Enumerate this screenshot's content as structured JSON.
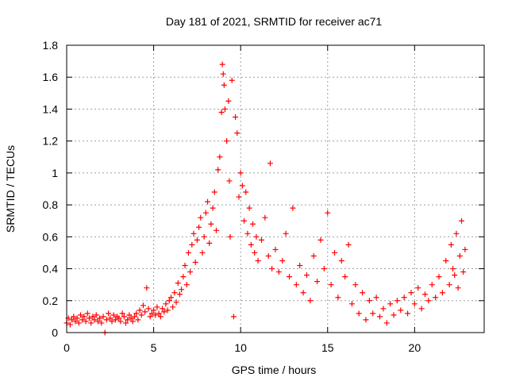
{
  "chart_data": {
    "type": "scatter",
    "title": "Day 181 of 2021, SRMTID for receiver ac71",
    "xlabel": "GPS time / hours",
    "ylabel": "SRMTID / TECUs",
    "xlim": [
      0,
      24
    ],
    "ylim": [
      0,
      1.8
    ],
    "x_ticks": [
      0,
      5,
      10,
      15,
      20
    ],
    "x_tick_labels": [
      "0",
      "5",
      "10",
      "15",
      "20"
    ],
    "y_ticks": [
      0,
      0.2,
      0.4,
      0.6,
      0.8,
      1.0,
      1.2,
      1.4,
      1.6,
      1.8
    ],
    "y_tick_labels": [
      "0",
      "0.2",
      "0.4",
      "0.6",
      "0.8",
      "1",
      "1.2",
      "1.4",
      "1.6",
      "1.8"
    ],
    "grid": true,
    "marker": "plus",
    "color": "#ff0000",
    "series": [
      {
        "name": "SRMTID ac71",
        "points": [
          [
            0.0,
            0.06
          ],
          [
            0.1,
            0.09
          ],
          [
            0.2,
            0.05
          ],
          [
            0.3,
            0.08
          ],
          [
            0.4,
            0.1
          ],
          [
            0.5,
            0.07
          ],
          [
            0.6,
            0.09
          ],
          [
            0.7,
            0.06
          ],
          [
            0.8,
            0.11
          ],
          [
            0.9,
            0.08
          ],
          [
            1.0,
            0.1
          ],
          [
            1.1,
            0.07
          ],
          [
            1.2,
            0.12
          ],
          [
            1.3,
            0.09
          ],
          [
            1.4,
            0.06
          ],
          [
            1.5,
            0.1
          ],
          [
            1.6,
            0.08
          ],
          [
            1.7,
            0.11
          ],
          [
            1.8,
            0.07
          ],
          [
            1.9,
            0.09
          ],
          [
            2.0,
            0.06
          ],
          [
            2.1,
            0.1
          ],
          [
            2.2,
            0.0
          ],
          [
            2.3,
            0.08
          ],
          [
            2.4,
            0.12
          ],
          [
            2.5,
            0.09
          ],
          [
            2.6,
            0.07
          ],
          [
            2.7,
            0.11
          ],
          [
            2.8,
            0.08
          ],
          [
            2.9,
            0.1
          ],
          [
            3.0,
            0.09
          ],
          [
            3.1,
            0.07
          ],
          [
            3.2,
            0.12
          ],
          [
            3.3,
            0.1
          ],
          [
            3.4,
            0.06
          ],
          [
            3.5,
            0.08
          ],
          [
            3.6,
            0.11
          ],
          [
            3.7,
            0.09
          ],
          [
            3.8,
            0.07
          ],
          [
            3.9,
            0.1
          ],
          [
            4.0,
            0.12
          ],
          [
            4.1,
            0.08
          ],
          [
            4.2,
            0.14
          ],
          [
            4.3,
            0.11
          ],
          [
            4.4,
            0.17
          ],
          [
            4.5,
            0.13
          ],
          [
            4.6,
            0.28
          ],
          [
            4.7,
            0.15
          ],
          [
            4.8,
            0.1
          ],
          [
            4.9,
            0.12
          ],
          [
            5.0,
            0.14
          ],
          [
            5.1,
            0.11
          ],
          [
            5.2,
            0.16
          ],
          [
            5.3,
            0.12
          ],
          [
            5.4,
            0.1
          ],
          [
            5.5,
            0.15
          ],
          [
            5.6,
            0.13
          ],
          [
            5.7,
            0.18
          ],
          [
            5.8,
            0.14
          ],
          [
            5.9,
            0.2
          ],
          [
            6.0,
            0.22
          ],
          [
            6.1,
            0.16
          ],
          [
            6.2,
            0.25
          ],
          [
            6.3,
            0.19
          ],
          [
            6.4,
            0.31
          ],
          [
            6.5,
            0.24
          ],
          [
            6.6,
            0.27
          ],
          [
            6.7,
            0.35
          ],
          [
            6.8,
            0.42
          ],
          [
            6.9,
            0.3
          ],
          [
            7.0,
            0.5
          ],
          [
            7.1,
            0.38
          ],
          [
            7.2,
            0.55
          ],
          [
            7.3,
            0.62
          ],
          [
            7.4,
            0.44
          ],
          [
            7.5,
            0.58
          ],
          [
            7.6,
            0.66
          ],
          [
            7.7,
            0.72
          ],
          [
            7.8,
            0.5
          ],
          [
            7.9,
            0.6
          ],
          [
            8.0,
            0.75
          ],
          [
            8.1,
            0.82
          ],
          [
            8.2,
            0.56
          ],
          [
            8.3,
            0.68
          ],
          [
            8.4,
            0.78
          ],
          [
            8.5,
            0.88
          ],
          [
            8.6,
            0.64
          ],
          [
            8.7,
            1.02
          ],
          [
            8.8,
            1.1
          ],
          [
            8.9,
            1.38
          ],
          [
            8.95,
            1.68
          ],
          [
            9.0,
            1.62
          ],
          [
            9.05,
            1.55
          ],
          [
            9.1,
            1.4
          ],
          [
            9.2,
            1.2
          ],
          [
            9.3,
            1.45
          ],
          [
            9.35,
            0.95
          ],
          [
            9.4,
            0.6
          ],
          [
            9.5,
            1.58
          ],
          [
            9.6,
            0.1
          ],
          [
            9.7,
            1.35
          ],
          [
            9.8,
            1.25
          ],
          [
            9.9,
            0.85
          ],
          [
            10.0,
            1.0
          ],
          [
            10.1,
            0.92
          ],
          [
            10.2,
            0.7
          ],
          [
            10.3,
            0.88
          ],
          [
            10.4,
            0.62
          ],
          [
            10.5,
            0.78
          ],
          [
            10.6,
            0.55
          ],
          [
            10.7,
            0.68
          ],
          [
            10.8,
            0.5
          ],
          [
            10.9,
            0.6
          ],
          [
            11.0,
            0.45
          ],
          [
            11.2,
            0.58
          ],
          [
            11.4,
            0.72
          ],
          [
            11.6,
            0.48
          ],
          [
            11.7,
            1.06
          ],
          [
            11.8,
            0.4
          ],
          [
            12.0,
            0.52
          ],
          [
            12.2,
            0.38
          ],
          [
            12.4,
            0.45
          ],
          [
            12.6,
            0.62
          ],
          [
            12.8,
            0.35
          ],
          [
            13.0,
            0.78
          ],
          [
            13.2,
            0.3
          ],
          [
            13.4,
            0.42
          ],
          [
            13.6,
            0.25
          ],
          [
            13.8,
            0.36
          ],
          [
            14.0,
            0.2
          ],
          [
            14.2,
            0.48
          ],
          [
            14.4,
            0.32
          ],
          [
            14.6,
            0.58
          ],
          [
            14.8,
            0.4
          ],
          [
            15.0,
            0.75
          ],
          [
            15.2,
            0.3
          ],
          [
            15.4,
            0.5
          ],
          [
            15.6,
            0.22
          ],
          [
            15.8,
            0.45
          ],
          [
            16.0,
            0.35
          ],
          [
            16.2,
            0.55
          ],
          [
            16.4,
            0.18
          ],
          [
            16.6,
            0.3
          ],
          [
            16.8,
            0.12
          ],
          [
            17.0,
            0.25
          ],
          [
            17.2,
            0.08
          ],
          [
            17.4,
            0.2
          ],
          [
            17.6,
            0.12
          ],
          [
            17.8,
            0.22
          ],
          [
            18.0,
            0.1
          ],
          [
            18.2,
            0.15
          ],
          [
            18.4,
            0.06
          ],
          [
            18.6,
            0.18
          ],
          [
            18.8,
            0.11
          ],
          [
            19.0,
            0.2
          ],
          [
            19.2,
            0.14
          ],
          [
            19.4,
            0.22
          ],
          [
            19.6,
            0.12
          ],
          [
            19.8,
            0.25
          ],
          [
            20.0,
            0.18
          ],
          [
            20.2,
            0.28
          ],
          [
            20.4,
            0.15
          ],
          [
            20.6,
            0.24
          ],
          [
            20.8,
            0.2
          ],
          [
            21.0,
            0.3
          ],
          [
            21.2,
            0.22
          ],
          [
            21.4,
            0.35
          ],
          [
            21.6,
            0.25
          ],
          [
            21.8,
            0.45
          ],
          [
            22.0,
            0.3
          ],
          [
            22.1,
            0.55
          ],
          [
            22.2,
            0.4
          ],
          [
            22.3,
            0.36
          ],
          [
            22.4,
            0.62
          ],
          [
            22.5,
            0.28
          ],
          [
            22.6,
            0.48
          ],
          [
            22.7,
            0.7
          ],
          [
            22.8,
            0.38
          ],
          [
            22.9,
            0.52
          ]
        ]
      }
    ]
  }
}
